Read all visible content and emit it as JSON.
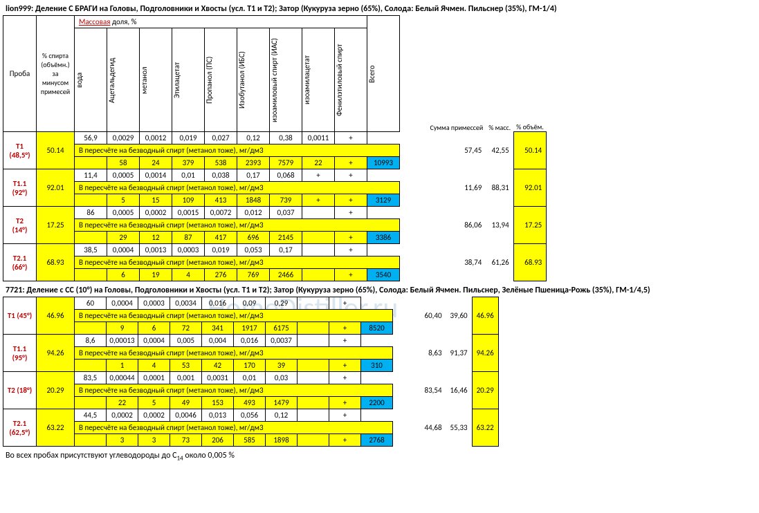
{
  "title1": "lion999: Деление С БРАГИ на Головы, Подголовники и Хвосты (усл. Т1 и Т2); Затор (Кукуруза зерно (65%), Солода: Белый Ячмен. Пильснер (35%), ГМ-1/4)",
  "title2": "7721: Деление с СС (10°) на Головы, Подголовники и Хвосты (усл. Т1 и Т2); Затор (Кукуруза зерно (65%), Солода: Белый Ячмен. Пильснер, Зелёные Пшеница-Рожь (35%), ГМ-1/4,5)",
  "head": {
    "proba": "Проба",
    "pct": "% спирта (объёмн.) за минусом примесей",
    "mass_label": "Массовая",
    "dolya": " доля, %",
    "cols": [
      "вода",
      "Ацетальдегид",
      "метанол",
      "Этилацетат",
      "Пропанол (ПС)",
      "Изобутанол (ИБС)",
      "изоамиловый спирт (ИАС)",
      "изоамилацетат",
      "Фенилэтиловый спирт",
      "Всего"
    ],
    "side": [
      "Сумма примессей",
      "% масс.",
      "% объём."
    ]
  },
  "recalc_label": "В пересчёте на безводный спирт (метанол тоже), мг/дм3",
  "plus": "+",
  "footer": "Во всех пробах присутствуют углеводороды до С₁₄ около 0,005 %",
  "t1": {
    "samples": [
      {
        "name": "Т1",
        "sub": "(48,5°)",
        "pct": "50.14",
        "r1": [
          "56,9",
          "0,0029",
          "0,0012",
          "0,019",
          "0,027",
          "0,12",
          "0,38",
          "0,0011",
          "+",
          ""
        ],
        "r3": [
          "",
          "58",
          "24",
          "379",
          "538",
          "2393",
          "7579",
          "22",
          "+",
          "10993"
        ],
        "side": [
          "57,45",
          "42,55",
          "50.14"
        ]
      },
      {
        "name": "Т1.1",
        "sub": "(92°)",
        "pct": "92.01",
        "r1": [
          "11,4",
          "0,0005",
          "0,0014",
          "0,01",
          "0,038",
          "0,17",
          "0,068",
          "+",
          "+",
          ""
        ],
        "r3": [
          "",
          "5",
          "15",
          "109",
          "413",
          "1848",
          "739",
          "+",
          "+",
          "3129"
        ],
        "side": [
          "11,69",
          "88,31",
          "92.01"
        ]
      },
      {
        "name": "Т2",
        "sub": "(14°)",
        "pct": "17.25",
        "r1": [
          "86",
          "0,0005",
          "0,0002",
          "0,0015",
          "0,0072",
          "0,012",
          "0,037",
          "",
          "+",
          ""
        ],
        "r3": [
          "",
          "29",
          "12",
          "87",
          "417",
          "696",
          "2145",
          "",
          "+",
          "3386"
        ],
        "side": [
          "86,06",
          "13,94",
          "17.25"
        ]
      },
      {
        "name": "Т2.1",
        "sub": "(66°)",
        "pct": "68.93",
        "r1": [
          "38,5",
          "0,0004",
          "0,0013",
          "0,0003",
          "0,019",
          "0,053",
          "0,17",
          "",
          "+",
          ""
        ],
        "r3": [
          "",
          "6",
          "19",
          "4",
          "276",
          "769",
          "2466",
          "",
          "+",
          "3540"
        ],
        "side": [
          "38,74",
          "61,26",
          "68.93"
        ]
      }
    ]
  },
  "t2": {
    "samples": [
      {
        "name": "Т1",
        "sub": "(45°)",
        "pct": "46.96",
        "r1": [
          "60",
          "0,0004",
          "0,0003",
          "0,0034",
          "0,016",
          "0,09",
          "0,29",
          "",
          "+",
          ""
        ],
        "r3": [
          "",
          "9",
          "6",
          "72",
          "341",
          "1917",
          "6175",
          "",
          "+",
          "8520"
        ],
        "side": [
          "60,40",
          "39,60",
          "46.96"
        ]
      },
      {
        "name": "Т1.1",
        "sub": "(95°)",
        "pct": "94.26",
        "r1": [
          "8,6",
          "0,00013",
          "0,0004",
          "0,005",
          "0,004",
          "0,016",
          "0,0037",
          "",
          "+",
          ""
        ],
        "r3": [
          "",
          "1",
          "4",
          "53",
          "42",
          "170",
          "39",
          "",
          "+",
          "310"
        ],
        "side": [
          "8,63",
          "91,37",
          "94.26"
        ]
      },
      {
        "name": "Т2",
        "sub": "(18°)",
        "pct": "20.29",
        "r1": [
          "83,5",
          "0,00044",
          "0,0001",
          "0,001",
          "0,0031",
          "0,01",
          "0,03",
          "",
          "+",
          ""
        ],
        "r3": [
          "",
          "22",
          "5",
          "49",
          "153",
          "493",
          "1479",
          "",
          "+",
          "2200"
        ],
        "side": [
          "83,54",
          "16,46",
          "20.29"
        ]
      },
      {
        "name": "Т2.1",
        "sub": "(62,5°)",
        "pct": "63.22",
        "r1": [
          "44,5",
          "0,0002",
          "0,0002",
          "0,0046",
          "0,013",
          "0,056",
          "0,12",
          "",
          "+",
          ""
        ],
        "r3": [
          "",
          "3",
          "3",
          "73",
          "206",
          "585",
          "1898",
          "",
          "+",
          "2768"
        ],
        "side": [
          "44,68",
          "55,33",
          "63.22"
        ]
      }
    ]
  },
  "colors": {
    "yellow": "#ffff00",
    "blue": "#00b0f0",
    "red": "#c00000"
  }
}
